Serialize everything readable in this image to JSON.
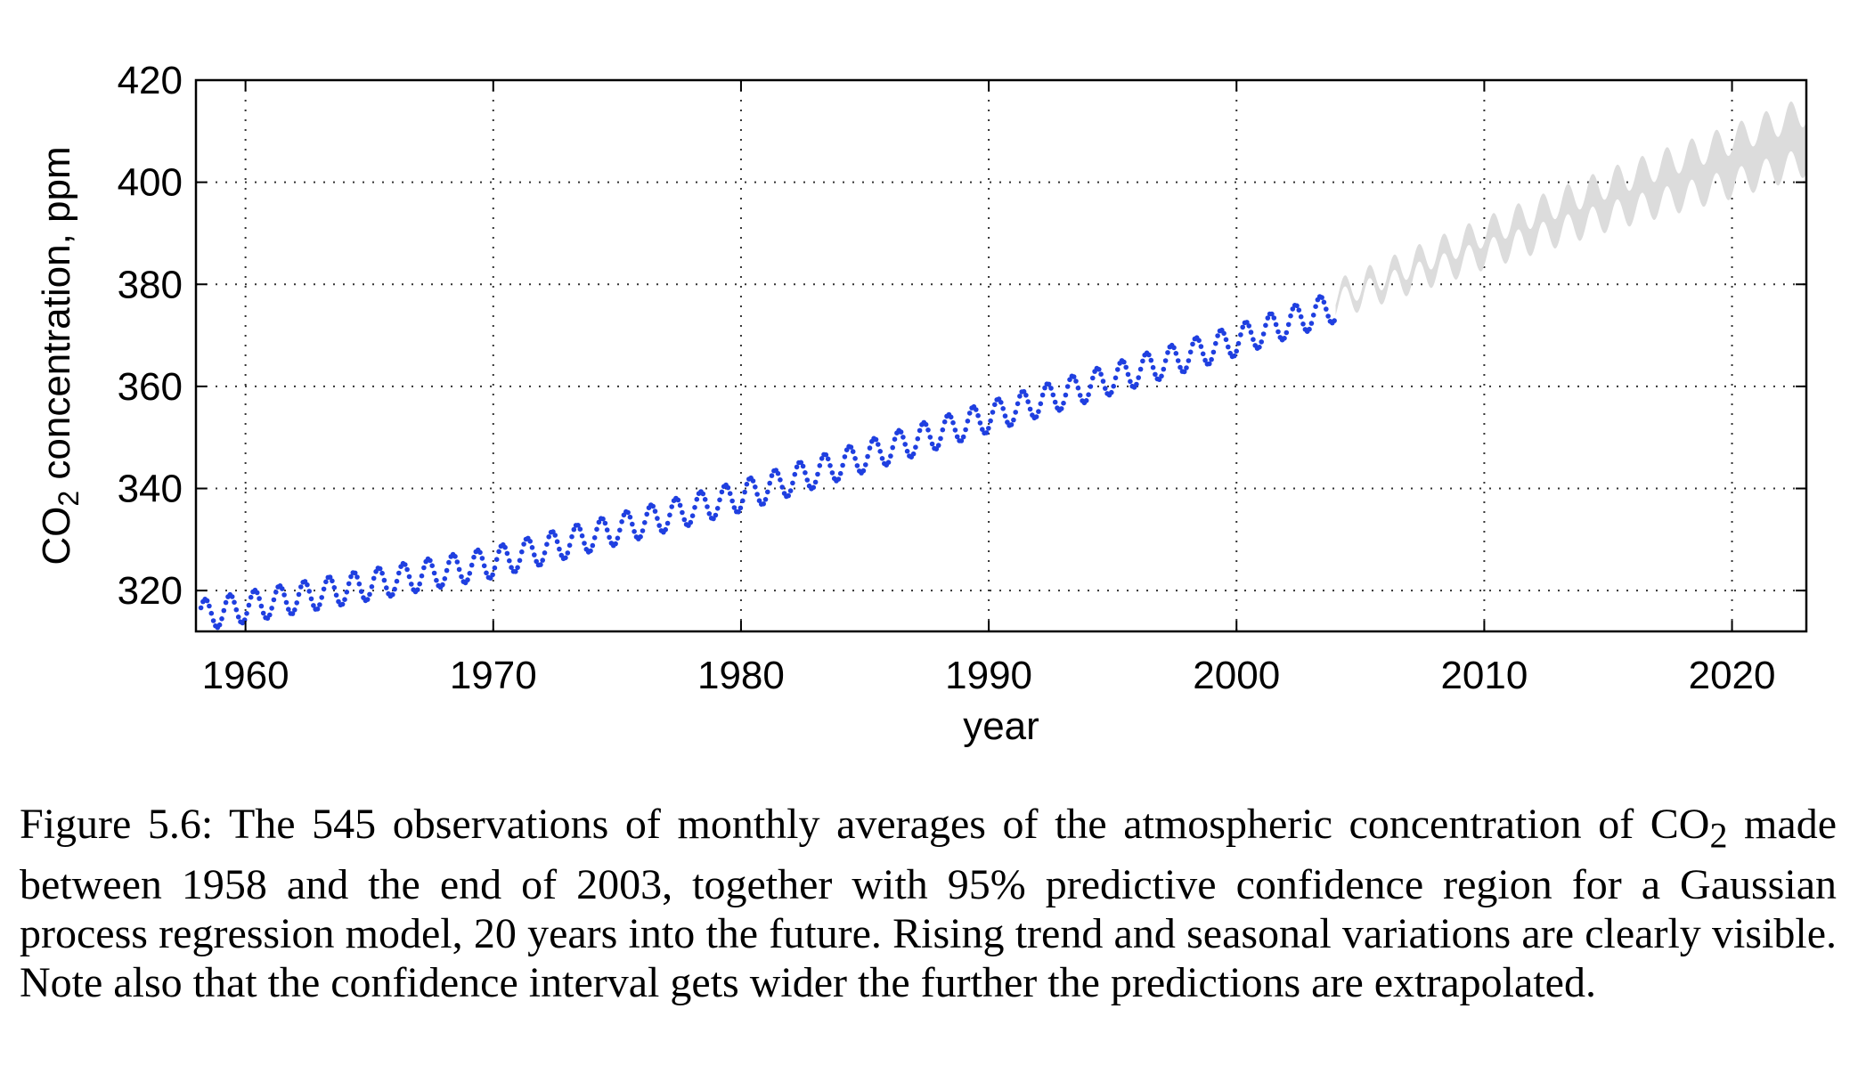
{
  "chart_data": {
    "type": "line",
    "title": "",
    "xlabel": "year",
    "ylabel": "CO2 concentration, ppm",
    "ylabel_main": "CO",
    "ylabel_sub": "2",
    "ylabel_rest": " concentration, ppm",
    "xlim": [
      1958,
      2023
    ],
    "ylim": [
      312,
      420
    ],
    "x_ticks": [
      1960,
      1970,
      1980,
      1990,
      2000,
      2010,
      2020
    ],
    "y_ticks": [
      320,
      340,
      360,
      380,
      400,
      420
    ],
    "grid": true,
    "series": [
      {
        "kind": "observations",
        "x_start": 1958.2,
        "x_end": 2003.95,
        "points": 545,
        "trend": [
          [
            1958,
            315.0
          ],
          [
            1970,
            325.5
          ],
          [
            1980,
            338.5
          ],
          [
            1990,
            354.0
          ],
          [
            2000,
            369.0
          ],
          [
            2003.9,
            375.5
          ]
        ],
        "seasonal_amplitude": 3.0,
        "color": "#1f3fe0"
      },
      {
        "kind": "confidence_band",
        "x_start": 2004.0,
        "x_end": 2023.0,
        "trend": [
          [
            2004,
            377.0
          ],
          [
            2010,
            388.0
          ],
          [
            2015,
            396.5
          ],
          [
            2020,
            404.0
          ],
          [
            2023,
            409.0
          ]
        ],
        "seasonal_amplitude": 3.0,
        "half_width_start": 1.0,
        "half_width_end": 5.0,
        "color": "#dcdcdc"
      }
    ]
  },
  "caption": {
    "figure_label": "Figure 5.6:",
    "text_part1": "The 545 observations of monthly averages of the atmospheric concentration of CO",
    "subscript": "2",
    "text_part2": " made between 1958 and the end of 2003, together with 95% predictive confidence region for a Gaussian process regression model, 20 years into the future. Rising trend and seasonal variations are clearly visible. Note also that the confidence interval gets wider the further the predictions are extrapolated."
  }
}
